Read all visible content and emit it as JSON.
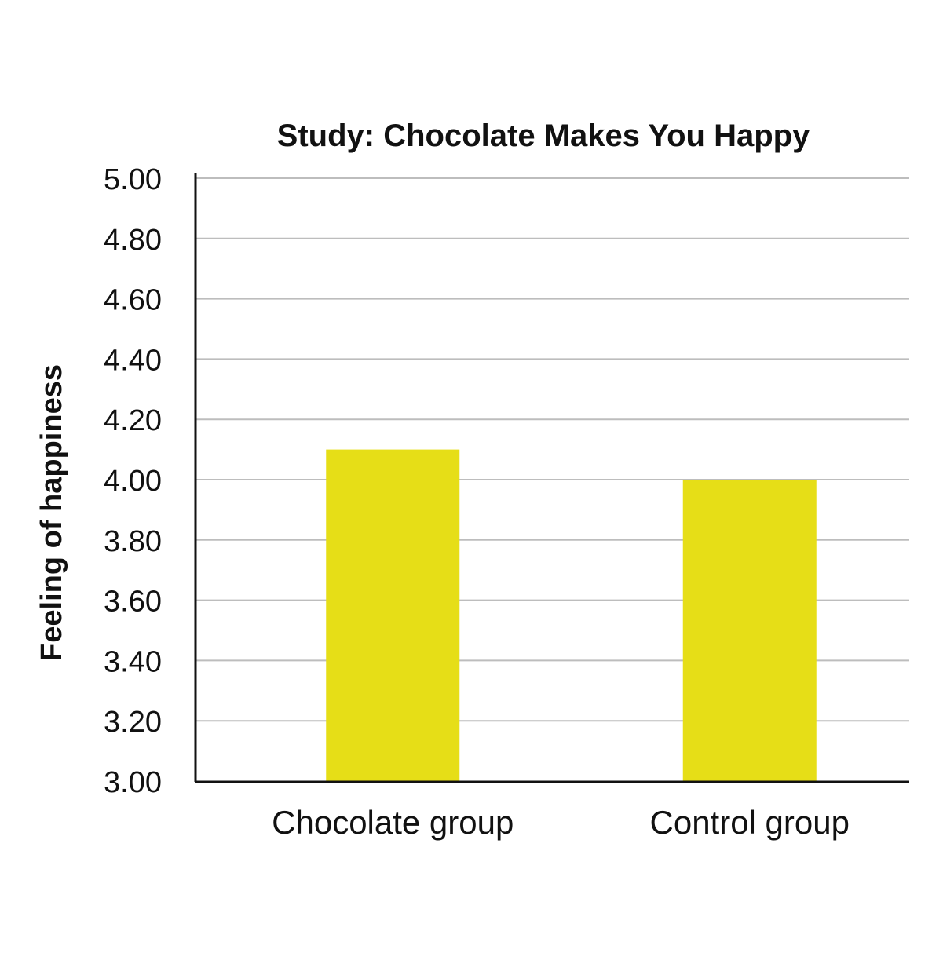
{
  "chart_data": {
    "type": "bar",
    "title": "Study: Chocolate Makes You Happy",
    "xlabel": "",
    "ylabel": "Feeling of happiness",
    "categories": [
      "Chocolate group",
      "Control group"
    ],
    "values": [
      4.1,
      4.0
    ],
    "ylim": [
      3.0,
      5.0
    ],
    "yticks": [
      "3.00",
      "3.20",
      "3.40",
      "3.60",
      "3.80",
      "4.00",
      "4.20",
      "4.40",
      "4.60",
      "4.80",
      "5.00"
    ],
    "grid": true,
    "legend": "none",
    "colors": {
      "bar": "#e6de17",
      "grid": "#bdbdbd",
      "axis": "#111111",
      "text": "#111111"
    }
  }
}
